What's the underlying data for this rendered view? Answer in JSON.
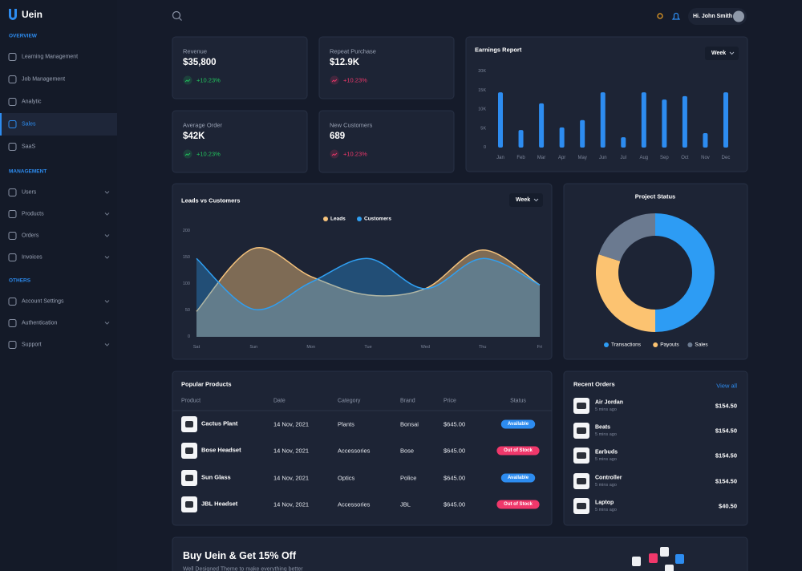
{
  "brand": "Uein",
  "sidebar": [
    {
      "heading": "OVERVIEW",
      "items": [
        "Learning Management",
        "Job Management",
        "Analytic",
        "Sales",
        "SaaS"
      ]
    },
    {
      "heading": "MANAGEMENT",
      "items": [
        "Users",
        "Products",
        "Orders",
        "Invoices"
      ]
    },
    {
      "heading": "OTHERS",
      "items": [
        "Account Settings",
        "Authentication",
        "Support"
      ]
    }
  ],
  "header": {
    "greeting": "Hi. John Smith"
  },
  "stats": [
    {
      "label": "Revenue",
      "value": "$35,800",
      "change": "+10.23%",
      "change_color": "#22c55e"
    },
    {
      "label": "Repeat Purchase",
      "value": "$12.9K",
      "change": "+10.23%",
      "change_color": "#f0386b"
    },
    {
      "label": "Average Order",
      "value": "$42K",
      "change": "+10.23%",
      "change_color": "#22c55e"
    },
    {
      "label": "New Customers",
      "value": "689",
      "change": "+10.23%",
      "change_color": "#f0386b"
    }
  ],
  "chart_data": [
    {
      "type": "bar",
      "title": "Earnings Report",
      "control": "Week",
      "categories": [
        "Jan",
        "Feb",
        "Mar",
        "Apr",
        "May",
        "Jun",
        "Jul",
        "Aug",
        "Sep",
        "Oct",
        "Nov",
        "Dec"
      ],
      "values": [
        14500,
        4600,
        11600,
        5300,
        7200,
        14500,
        2700,
        14500,
        12600,
        13500,
        3800,
        14500
      ],
      "color": "#2d8cf0",
      "ylim": [
        0,
        20000
      ],
      "yticks": [
        0,
        {
          "value": 5000,
          "label": "5K"
        },
        {
          "value": 10000,
          "label": "10K"
        },
        {
          "value": 15000,
          "label": "15K"
        },
        {
          "value": 20000,
          "label": "20K"
        }
      ]
    },
    {
      "type": "area",
      "title": "Leads vs Customers",
      "control": "Week",
      "categories": [
        "Sat",
        "Sun",
        "Mon",
        "Tue",
        "Wed",
        "Thu",
        "Fri"
      ],
      "series": [
        {
          "name": "Leads",
          "color": "#f6c37c",
          "values": [
            48,
            167,
            114,
            79,
            91,
            164,
            98
          ]
        },
        {
          "name": "Customers",
          "color": "#2f9ff2",
          "values": [
            148,
            52,
            103,
            148,
            91,
            148,
            98
          ]
        }
      ],
      "ylim": [
        0,
        200
      ],
      "yticks": [
        0,
        50,
        100,
        150,
        200
      ]
    },
    {
      "type": "donut",
      "title": "Project Status",
      "categories": [
        "Transactions",
        "Payouts",
        "Sales"
      ],
      "values": [
        50,
        30,
        20
      ],
      "colors": [
        "#2d9cf4",
        "#fcc371",
        "#6b7a90"
      ]
    }
  ],
  "products": {
    "title": "Popular Products",
    "columns": [
      "Product",
      "Date",
      "Category",
      "Brand",
      "Price",
      "Status"
    ],
    "rows": [
      [
        "Cactus Plant",
        "14 Nov, 2021",
        "Plants",
        "Bonsai",
        "$645.00",
        "Available"
      ],
      [
        "Bose Headset",
        "14 Nov, 2021",
        "Accessories",
        "Bose",
        "$645.00",
        "Out of Stock"
      ],
      [
        "Sun Glass",
        "14 Nov, 2021",
        "Optics",
        "Police",
        "$645.00",
        "Available"
      ],
      [
        "JBL Headset",
        "14 Nov, 2021",
        "Accessories",
        "JBL",
        "$645.00",
        "Out of Stock"
      ]
    ]
  },
  "orders": {
    "title": "Recent Orders",
    "link": "View all",
    "items": [
      {
        "name": "Air Jordan",
        "time": "5 mins ago",
        "price": "$154.50"
      },
      {
        "name": "Beats",
        "time": "5 mins ago",
        "price": "$154.50"
      },
      {
        "name": "Earbuds",
        "time": "5 mins ago",
        "price": "$154.50"
      },
      {
        "name": "Controller",
        "time": "5 mins ago",
        "price": "$154.50"
      },
      {
        "name": "Laptop",
        "time": "5 mins ago",
        "price": "$40.50"
      }
    ]
  },
  "promo": {
    "title": "Buy Uein & Get 15% Off",
    "text": "Well Designed Theme to make everything better"
  }
}
